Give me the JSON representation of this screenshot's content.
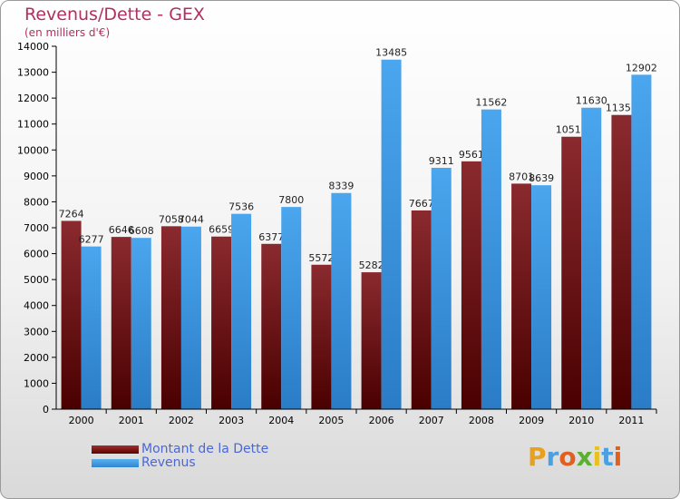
{
  "title": "Revenus/Dette - GEX",
  "subtitle": "(en milliers d'€)",
  "chart_data": {
    "type": "bar",
    "title": "Revenus/Dette - GEX",
    "subtitle": "(en milliers d'€)",
    "categories": [
      "2000",
      "2001",
      "2002",
      "2003",
      "2004",
      "2005",
      "2006",
      "2007",
      "2008",
      "2009",
      "2010",
      "2011"
    ],
    "series": [
      {
        "name": "Montant de la Dette",
        "color": "#7a1e22",
        "values": [
          7264,
          6646,
          7058,
          6659,
          6377,
          5572,
          5282,
          7667,
          9561,
          8701,
          10510,
          11350
        ],
        "labels": [
          "7264",
          "6646",
          "7058",
          "6659",
          "6377",
          "5572",
          "5282",
          "7667",
          "9561",
          "8701",
          "10510",
          "11350"
        ]
      },
      {
        "name": "Revenus",
        "color": "#3e9be6",
        "values": [
          6277,
          6608,
          7044,
          7536,
          7800,
          8339,
          13485,
          9311,
          11562,
          8639,
          11630,
          12902
        ],
        "labels": [
          "6277",
          "6608",
          "7044",
          "7536",
          "7800",
          "8339",
          "13485",
          "9311",
          "11562",
          "8639",
          "11630",
          "12902"
        ]
      }
    ],
    "ylim": [
      0,
      14000
    ],
    "yticks": [
      0,
      1000,
      2000,
      3000,
      4000,
      5000,
      6000,
      7000,
      8000,
      9000,
      10000,
      11000,
      12000,
      13000,
      14000
    ],
    "grid": false,
    "legend_position": "bottom-left"
  },
  "legend": {
    "items": [
      {
        "label": "Montant de la Dette",
        "color": "#7a1e22"
      },
      {
        "label": "Revenus",
        "color": "#3e9be6"
      }
    ]
  },
  "logo": {
    "letters": [
      "P",
      "r",
      "o",
      "x",
      "i",
      "t",
      "i"
    ],
    "colors": [
      "#e8a020",
      "#4aa0e0",
      "#e06020",
      "#5ab030",
      "#e8c020",
      "#4aa0e0",
      "#e06020"
    ]
  }
}
